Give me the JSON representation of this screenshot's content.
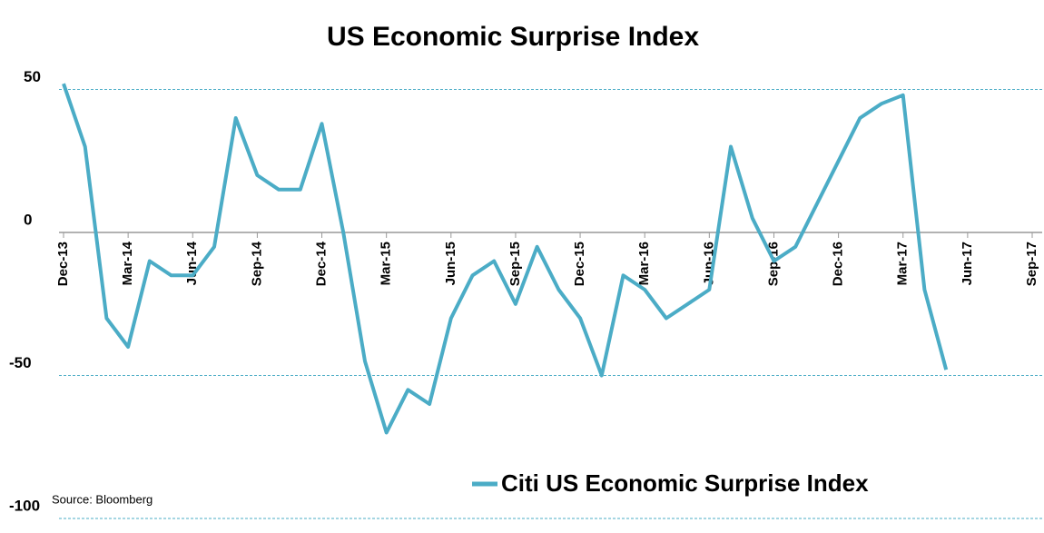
{
  "chart_data": {
    "type": "line",
    "title": "US Economic Surprise Index",
    "source": "Source: Bloomberg",
    "x": [
      "2013-12",
      "2014-01",
      "2014-02",
      "2014-03",
      "2014-04",
      "2014-05",
      "2014-06",
      "2014-07",
      "2014-08",
      "2014-09",
      "2014-10",
      "2014-11",
      "2014-12",
      "2015-01",
      "2015-02",
      "2015-03",
      "2015-04",
      "2015-05",
      "2015-06",
      "2015-07",
      "2015-08",
      "2015-09",
      "2015-10",
      "2015-11",
      "2015-12",
      "2016-01",
      "2016-02",
      "2016-03",
      "2016-04",
      "2016-05",
      "2016-06",
      "2016-07",
      "2016-08",
      "2016-09",
      "2016-10",
      "2016-11",
      "2016-12",
      "2017-01",
      "2017-02",
      "2017-03",
      "2017-04",
      "2017-05"
    ],
    "series": [
      {
        "name": "Citi US Economic Surprise Index",
        "color": "#4bacc6",
        "values": [
          52,
          30,
          -30,
          -40,
          -10,
          -15,
          -15,
          -5,
          40,
          20,
          15,
          15,
          38,
          0,
          -45,
          -70,
          -55,
          -60,
          -30,
          -15,
          -10,
          -25,
          -5,
          -20,
          -30,
          -50,
          -15,
          -20,
          -30,
          -25,
          -20,
          30,
          5,
          -10,
          -5,
          10,
          25,
          40,
          45,
          48,
          -20,
          -48
        ]
      }
    ],
    "xlim": [
      "2013-12",
      "2017-09"
    ],
    "xticks": [
      {
        "value": "2013-12",
        "label": "Dec-13"
      },
      {
        "value": "2014-03",
        "label": "Mar-14"
      },
      {
        "value": "2014-06",
        "label": "Jun-14"
      },
      {
        "value": "2014-09",
        "label": "Sep-14"
      },
      {
        "value": "2014-12",
        "label": "Dec-14"
      },
      {
        "value": "2015-03",
        "label": "Mar-15"
      },
      {
        "value": "2015-06",
        "label": "Jun-15"
      },
      {
        "value": "2015-09",
        "label": "Sep-15"
      },
      {
        "value": "2015-12",
        "label": "Dec-15"
      },
      {
        "value": "2016-03",
        "label": "Mar-16"
      },
      {
        "value": "2016-06",
        "label": "Jun-16"
      },
      {
        "value": "2016-09",
        "label": "Sep-16"
      },
      {
        "value": "2016-12",
        "label": "Dec-16"
      },
      {
        "value": "2017-03",
        "label": "Mar-17"
      },
      {
        "value": "2017-06",
        "label": "Jun-17"
      },
      {
        "value": "2017-09",
        "label": "Sep-17"
      }
    ],
    "ylim": [
      -100,
      75
    ],
    "yticks": [
      50,
      0,
      -50,
      -100
    ],
    "grid": true,
    "grid_color": "#4bacc6",
    "legend": "bottom"
  }
}
